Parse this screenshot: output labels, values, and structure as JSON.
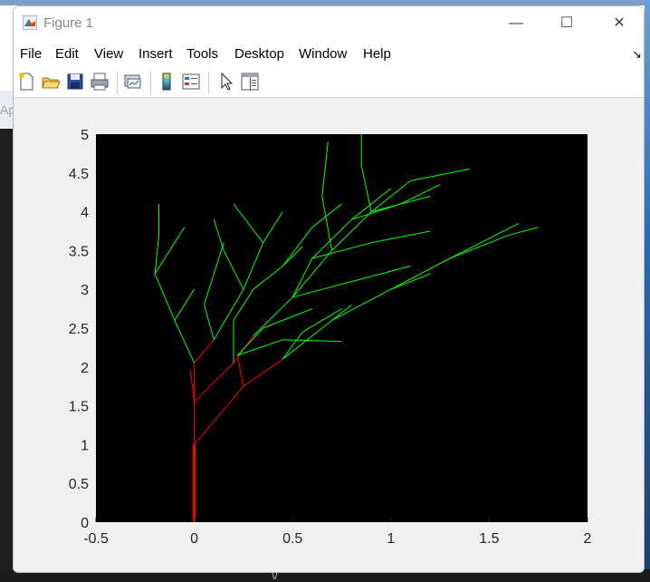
{
  "window": {
    "title": "Figure 1"
  },
  "background_fragment": "Ap",
  "menu": [
    "File",
    "Edit",
    "View",
    "Insert",
    "Tools",
    "Desktop",
    "Window",
    "Help"
  ],
  "toolbar": {
    "icons": [
      "new-figure-icon",
      "open-file-icon",
      "save-icon",
      "print-icon",
      "link-plot-icon",
      "colorbar-icon",
      "legend-icon",
      "pointer-icon",
      "property-inspector-icon"
    ]
  },
  "colors": {
    "trunk": "#ff0000",
    "leaves": "#00ff00",
    "axes_background": "#000000"
  },
  "chart_data": {
    "type": "line",
    "description_note": "",
    "xlim": [
      -0.5,
      2
    ],
    "ylim": [
      0,
      5
    ],
    "xticks": [
      "-0.5",
      "0",
      "0.5",
      "1",
      "1.5",
      "2"
    ],
    "yticks": [
      "0",
      "0.5",
      "1",
      "1.5",
      "2",
      "2.5",
      "3",
      "3.5",
      "4",
      "4.5",
      "5"
    ],
    "grid": false,
    "series": [
      {
        "color": "#ff0000",
        "segments": [
          [
            0,
            0,
            0,
            1
          ],
          [
            0,
            1,
            0,
            1.55
          ],
          [
            0,
            1,
            0.25,
            1.75
          ],
          [
            0,
            1.55,
            0,
            2.05
          ],
          [
            0,
            1.55,
            0.2,
            2.05
          ],
          [
            0,
            1.55,
            -0.02,
            1.95
          ],
          [
            0.25,
            1.75,
            0.45,
            2.1
          ],
          [
            0.25,
            1.75,
            0.22,
            2.15
          ],
          [
            0,
            2.05,
            0.1,
            2.35
          ],
          [
            0.2,
            2.05,
            0.3,
            2.4
          ]
        ]
      },
      {
        "color": "#00ff00",
        "segments": [
          [
            0,
            2.05,
            -0.1,
            2.6
          ],
          [
            -0.1,
            2.6,
            -0.2,
            3.2
          ],
          [
            -0.2,
            3.2,
            -0.18,
            3.7
          ],
          [
            -0.2,
            3.2,
            -0.05,
            3.8
          ],
          [
            -0.18,
            3.7,
            -0.18,
            4.1
          ],
          [
            -0.1,
            2.6,
            0,
            3.0
          ],
          [
            0.1,
            2.35,
            0.25,
            3.0
          ],
          [
            0.25,
            3.0,
            0.35,
            3.6
          ],
          [
            0.35,
            3.6,
            0.45,
            4.0
          ],
          [
            0.25,
            3.0,
            0.15,
            3.5
          ],
          [
            0.15,
            3.5,
            0.1,
            3.9
          ],
          [
            0.35,
            3.6,
            0.2,
            4.1
          ],
          [
            0.3,
            2.4,
            0.5,
            2.9
          ],
          [
            0.5,
            2.9,
            0.7,
            3.5
          ],
          [
            0.7,
            3.5,
            0.9,
            4.0
          ],
          [
            0.9,
            4.0,
            1.1,
            4.4
          ],
          [
            1.1,
            4.4,
            1.4,
            4.55
          ],
          [
            0.9,
            4.0,
            0.85,
            4.6
          ],
          [
            0.85,
            4.6,
            0.85,
            5.0
          ],
          [
            0.7,
            3.5,
            0.65,
            4.2
          ],
          [
            0.65,
            4.2,
            0.68,
            4.9
          ],
          [
            0.5,
            2.9,
            0.6,
            3.4
          ],
          [
            0.6,
            3.4,
            0.8,
            3.9
          ],
          [
            0.8,
            3.9,
            1.0,
            4.3
          ],
          [
            0.45,
            2.1,
            0.7,
            2.6
          ],
          [
            0.7,
            2.6,
            1.0,
            3.0
          ],
          [
            1.0,
            3.0,
            1.3,
            3.4
          ],
          [
            1.3,
            3.4,
            1.6,
            3.7
          ],
          [
            1.6,
            3.7,
            1.75,
            3.8
          ],
          [
            1.3,
            3.4,
            1.65,
            3.85
          ],
          [
            1.0,
            3.0,
            1.2,
            3.2
          ],
          [
            0.7,
            2.6,
            0.8,
            2.8
          ],
          [
            0.22,
            2.15,
            0.45,
            2.35
          ],
          [
            0.45,
            2.35,
            0.75,
            2.33
          ],
          [
            0.22,
            2.15,
            0.35,
            2.5
          ],
          [
            0.35,
            2.5,
            0.6,
            2.75
          ],
          [
            0.45,
            2.1,
            0.55,
            2.45
          ],
          [
            0.55,
            2.45,
            0.75,
            2.75
          ],
          [
            0.2,
            2.05,
            0.2,
            2.6
          ],
          [
            0.2,
            2.6,
            0.3,
            3.0
          ],
          [
            0.3,
            3.0,
            0.45,
            3.3
          ],
          [
            0.45,
            3.3,
            0.6,
            3.8
          ],
          [
            0.6,
            3.8,
            0.75,
            4.1
          ],
          [
            0.45,
            3.3,
            0.55,
            3.55
          ],
          [
            0.1,
            2.35,
            0.05,
            2.8
          ],
          [
            0.05,
            2.8,
            0.1,
            3.2
          ],
          [
            0.1,
            3.2,
            0.15,
            3.6
          ],
          [
            0.8,
            3.9,
            1.05,
            4.1
          ],
          [
            1.05,
            4.1,
            1.25,
            4.35
          ],
          [
            0.9,
            4.0,
            1.2,
            4.2
          ],
          [
            0.6,
            3.4,
            0.9,
            3.6
          ],
          [
            0.9,
            3.6,
            1.2,
            3.75
          ],
          [
            0.5,
            2.9,
            0.8,
            3.1
          ],
          [
            0.8,
            3.1,
            1.1,
            3.3
          ]
        ]
      }
    ]
  }
}
